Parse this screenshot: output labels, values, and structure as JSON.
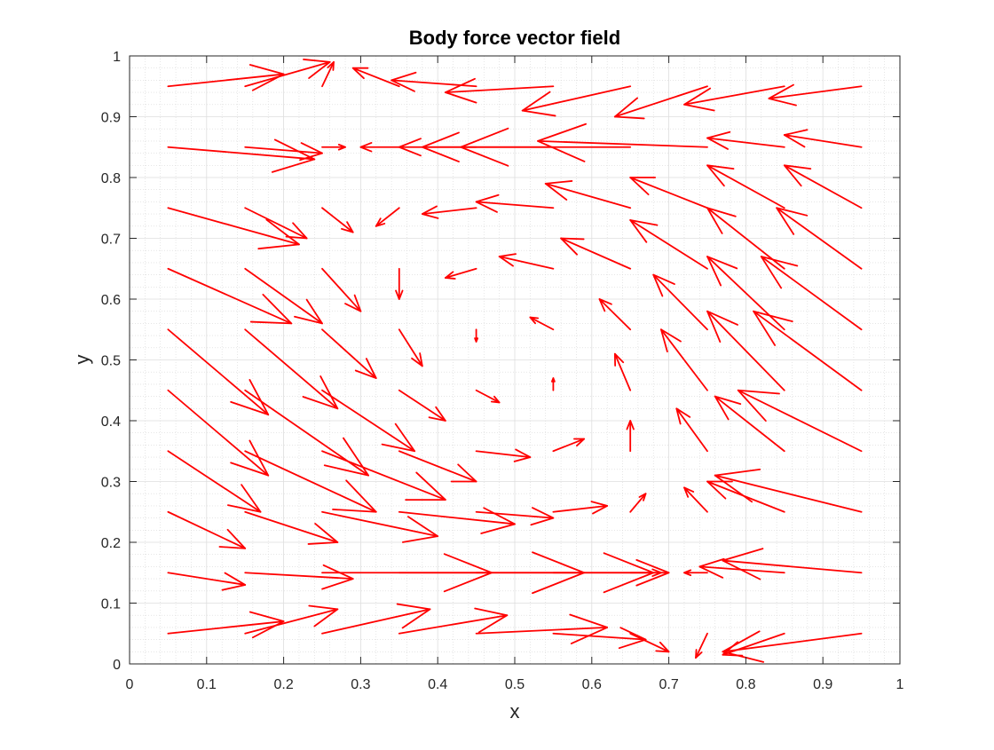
{
  "chart_data": {
    "type": "quiver",
    "title": "Body force vector field",
    "xlabel": "x",
    "ylabel": "y",
    "xlim": [
      0,
      1
    ],
    "ylim": [
      0,
      1
    ],
    "xticks": [
      0,
      0.1,
      0.2,
      0.3,
      0.4,
      0.5,
      0.6,
      0.7,
      0.8,
      0.9,
      1
    ],
    "yticks": [
      0,
      0.1,
      0.2,
      0.3,
      0.4,
      0.5,
      0.6,
      0.7,
      0.8,
      0.9,
      1
    ],
    "xtick_labels": [
      "0",
      "0.1",
      "0.2",
      "0.3",
      "0.4",
      "0.5",
      "0.6",
      "0.7",
      "0.8",
      "0.9",
      "1"
    ],
    "ytick_labels": [
      "0",
      "0.1",
      "0.2",
      "0.3",
      "0.4",
      "0.5",
      "0.6",
      "0.7",
      "0.8",
      "0.9",
      "1"
    ],
    "grid": "major and minor",
    "arrow_color": "#ff0000",
    "grid_x": [
      0.05,
      0.15,
      0.25,
      0.35,
      0.45,
      0.55,
      0.65,
      0.75,
      0.85,
      0.95
    ],
    "grid_y": [
      0.05,
      0.15,
      0.25,
      0.35,
      0.45,
      0.55,
      0.65,
      0.75,
      0.85,
      0.95
    ],
    "vectors": [
      {
        "x": 0.05,
        "y": 0.05,
        "u": 0.15,
        "v": 0.02
      },
      {
        "x": 0.15,
        "y": 0.05,
        "u": 0.12,
        "v": 0.04
      },
      {
        "x": 0.25,
        "y": 0.05,
        "u": 0.14,
        "v": 0.04
      },
      {
        "x": 0.35,
        "y": 0.05,
        "u": 0.14,
        "v": 0.03
      },
      {
        "x": 0.45,
        "y": 0.05,
        "u": 0.17,
        "v": 0.01
      },
      {
        "x": 0.55,
        "y": 0.05,
        "u": 0.12,
        "v": -0.01
      },
      {
        "x": 0.65,
        "y": 0.05,
        "u": 0.05,
        "v": -0.03
      },
      {
        "x": 0.75,
        "y": 0.05,
        "u": -0.015,
        "v": -0.04
      },
      {
        "x": 0.85,
        "y": 0.05,
        "u": -0.08,
        "v": -0.035
      },
      {
        "x": 0.95,
        "y": 0.05,
        "u": -0.18,
        "v": -0.03
      },
      {
        "x": 0.05,
        "y": 0.15,
        "u": 0.1,
        "v": -0.02
      },
      {
        "x": 0.15,
        "y": 0.15,
        "u": 0.14,
        "v": -0.01
      },
      {
        "x": 0.25,
        "y": 0.15,
        "u": 0.22,
        "v": 0.0
      },
      {
        "x": 0.35,
        "y": 0.15,
        "u": 0.24,
        "v": 0.0
      },
      {
        "x": 0.45,
        "y": 0.15,
        "u": 0.23,
        "v": 0.0
      },
      {
        "x": 0.55,
        "y": 0.15,
        "u": 0.15,
        "v": 0.0
      },
      {
        "x": 0.65,
        "y": 0.15,
        "u": 0.04,
        "v": 0.0
      },
      {
        "x": 0.75,
        "y": 0.15,
        "u": -0.03,
        "v": 0.0
      },
      {
        "x": 0.85,
        "y": 0.15,
        "u": -0.11,
        "v": 0.01
      },
      {
        "x": 0.95,
        "y": 0.15,
        "u": -0.18,
        "v": 0.02
      },
      {
        "x": 0.05,
        "y": 0.25,
        "u": 0.1,
        "v": -0.06
      },
      {
        "x": 0.15,
        "y": 0.25,
        "u": 0.12,
        "v": -0.05
      },
      {
        "x": 0.25,
        "y": 0.25,
        "u": 0.15,
        "v": -0.04
      },
      {
        "x": 0.35,
        "y": 0.25,
        "u": 0.15,
        "v": -0.02
      },
      {
        "x": 0.45,
        "y": 0.25,
        "u": 0.1,
        "v": -0.01
      },
      {
        "x": 0.55,
        "y": 0.25,
        "u": 0.07,
        "v": 0.01
      },
      {
        "x": 0.65,
        "y": 0.25,
        "u": 0.02,
        "v": 0.03
      },
      {
        "x": 0.75,
        "y": 0.25,
        "u": -0.03,
        "v": 0.04
      },
      {
        "x": 0.85,
        "y": 0.25,
        "u": -0.1,
        "v": 0.05
      },
      {
        "x": 0.95,
        "y": 0.25,
        "u": -0.19,
        "v": 0.06
      },
      {
        "x": 0.05,
        "y": 0.35,
        "u": 0.12,
        "v": -0.1
      },
      {
        "x": 0.15,
        "y": 0.35,
        "u": 0.17,
        "v": -0.1
      },
      {
        "x": 0.25,
        "y": 0.35,
        "u": 0.16,
        "v": -0.08
      },
      {
        "x": 0.35,
        "y": 0.35,
        "u": 0.1,
        "v": -0.05
      },
      {
        "x": 0.45,
        "y": 0.35,
        "u": 0.07,
        "v": -0.01
      },
      {
        "x": 0.55,
        "y": 0.35,
        "u": 0.04,
        "v": 0.02
      },
      {
        "x": 0.65,
        "y": 0.35,
        "u": 0.0,
        "v": 0.05
      },
      {
        "x": 0.75,
        "y": 0.35,
        "u": -0.04,
        "v": 0.07
      },
      {
        "x": 0.85,
        "y": 0.35,
        "u": -0.09,
        "v": 0.09
      },
      {
        "x": 0.95,
        "y": 0.35,
        "u": -0.16,
        "v": 0.1
      },
      {
        "x": 0.05,
        "y": 0.45,
        "u": 0.13,
        "v": -0.14
      },
      {
        "x": 0.15,
        "y": 0.45,
        "u": 0.16,
        "v": -0.14
      },
      {
        "x": 0.25,
        "y": 0.45,
        "u": 0.12,
        "v": -0.1
      },
      {
        "x": 0.35,
        "y": 0.45,
        "u": 0.06,
        "v": -0.05
      },
      {
        "x": 0.45,
        "y": 0.45,
        "u": 0.03,
        "v": -0.02
      },
      {
        "x": 0.55,
        "y": 0.45,
        "u": 0.0,
        "v": 0.02
      },
      {
        "x": 0.65,
        "y": 0.45,
        "u": -0.02,
        "v": 0.06
      },
      {
        "x": 0.75,
        "y": 0.45,
        "u": -0.06,
        "v": 0.1
      },
      {
        "x": 0.85,
        "y": 0.45,
        "u": -0.1,
        "v": 0.13
      },
      {
        "x": 0.95,
        "y": 0.45,
        "u": -0.14,
        "v": 0.13
      },
      {
        "x": 0.05,
        "y": 0.55,
        "u": 0.13,
        "v": -0.14
      },
      {
        "x": 0.15,
        "y": 0.55,
        "u": 0.12,
        "v": -0.13
      },
      {
        "x": 0.25,
        "y": 0.55,
        "u": 0.07,
        "v": -0.08
      },
      {
        "x": 0.35,
        "y": 0.55,
        "u": 0.03,
        "v": -0.06
      },
      {
        "x": 0.45,
        "y": 0.55,
        "u": 0.0,
        "v": -0.02
      },
      {
        "x": 0.55,
        "y": 0.55,
        "u": -0.03,
        "v": 0.02
      },
      {
        "x": 0.65,
        "y": 0.55,
        "u": -0.04,
        "v": 0.05
      },
      {
        "x": 0.75,
        "y": 0.55,
        "u": -0.07,
        "v": 0.09
      },
      {
        "x": 0.85,
        "y": 0.55,
        "u": -0.1,
        "v": 0.12
      },
      {
        "x": 0.95,
        "y": 0.55,
        "u": -0.13,
        "v": 0.12
      },
      {
        "x": 0.05,
        "y": 0.65,
        "u": 0.16,
        "v": -0.09
      },
      {
        "x": 0.15,
        "y": 0.65,
        "u": 0.1,
        "v": -0.09
      },
      {
        "x": 0.25,
        "y": 0.65,
        "u": 0.05,
        "v": -0.07
      },
      {
        "x": 0.35,
        "y": 0.65,
        "u": 0.0,
        "v": -0.05
      },
      {
        "x": 0.45,
        "y": 0.65,
        "u": -0.04,
        "v": -0.015
      },
      {
        "x": 0.55,
        "y": 0.65,
        "u": -0.07,
        "v": 0.02
      },
      {
        "x": 0.65,
        "y": 0.65,
        "u": -0.09,
        "v": 0.05
      },
      {
        "x": 0.75,
        "y": 0.65,
        "u": -0.1,
        "v": 0.08
      },
      {
        "x": 0.85,
        "y": 0.65,
        "u": -0.1,
        "v": 0.1
      },
      {
        "x": 0.95,
        "y": 0.65,
        "u": -0.11,
        "v": 0.1
      },
      {
        "x": 0.05,
        "y": 0.75,
        "u": 0.17,
        "v": -0.06
      },
      {
        "x": 0.15,
        "y": 0.75,
        "u": 0.08,
        "v": -0.05
      },
      {
        "x": 0.25,
        "y": 0.75,
        "u": 0.04,
        "v": -0.04
      },
      {
        "x": 0.35,
        "y": 0.75,
        "u": -0.03,
        "v": -0.03
      },
      {
        "x": 0.45,
        "y": 0.75,
        "u": -0.07,
        "v": -0.01
      },
      {
        "x": 0.55,
        "y": 0.75,
        "u": -0.1,
        "v": 0.01
      },
      {
        "x": 0.65,
        "y": 0.75,
        "u": -0.11,
        "v": 0.04
      },
      {
        "x": 0.75,
        "y": 0.75,
        "u": -0.1,
        "v": 0.05
      },
      {
        "x": 0.85,
        "y": 0.75,
        "u": -0.1,
        "v": 0.07
      },
      {
        "x": 0.95,
        "y": 0.75,
        "u": -0.1,
        "v": 0.07
      },
      {
        "x": 0.05,
        "y": 0.85,
        "u": 0.19,
        "v": -0.02
      },
      {
        "x": 0.15,
        "y": 0.85,
        "u": 0.1,
        "v": -0.01
      },
      {
        "x": 0.25,
        "y": 0.85,
        "u": 0.03,
        "v": 0.0
      },
      {
        "x": 0.35,
        "y": 0.85,
        "u": -0.05,
        "v": 0.0
      },
      {
        "x": 0.45,
        "y": 0.85,
        "u": -0.1,
        "v": 0.0
      },
      {
        "x": 0.55,
        "y": 0.85,
        "u": -0.17,
        "v": 0.0
      },
      {
        "x": 0.65,
        "y": 0.85,
        "u": -0.22,
        "v": 0.0
      },
      {
        "x": 0.75,
        "y": 0.85,
        "u": -0.22,
        "v": 0.01
      },
      {
        "x": 0.85,
        "y": 0.85,
        "u": -0.1,
        "v": 0.015
      },
      {
        "x": 0.95,
        "y": 0.85,
        "u": -0.1,
        "v": 0.02
      },
      {
        "x": 0.05,
        "y": 0.95,
        "u": 0.15,
        "v": 0.02
      },
      {
        "x": 0.15,
        "y": 0.95,
        "u": 0.11,
        "v": 0.04
      },
      {
        "x": 0.25,
        "y": 0.95,
        "u": 0.015,
        "v": 0.04
      },
      {
        "x": 0.35,
        "y": 0.95,
        "u": -0.06,
        "v": 0.03
      },
      {
        "x": 0.45,
        "y": 0.95,
        "u": -0.11,
        "v": 0.01
      },
      {
        "x": 0.55,
        "y": 0.95,
        "u": -0.14,
        "v": -0.01
      },
      {
        "x": 0.65,
        "y": 0.95,
        "u": -0.14,
        "v": -0.04
      },
      {
        "x": 0.75,
        "y": 0.95,
        "u": -0.12,
        "v": -0.05
      },
      {
        "x": 0.85,
        "y": 0.95,
        "u": -0.13,
        "v": -0.03
      },
      {
        "x": 0.95,
        "y": 0.95,
        "u": -0.12,
        "v": -0.02
      }
    ]
  }
}
